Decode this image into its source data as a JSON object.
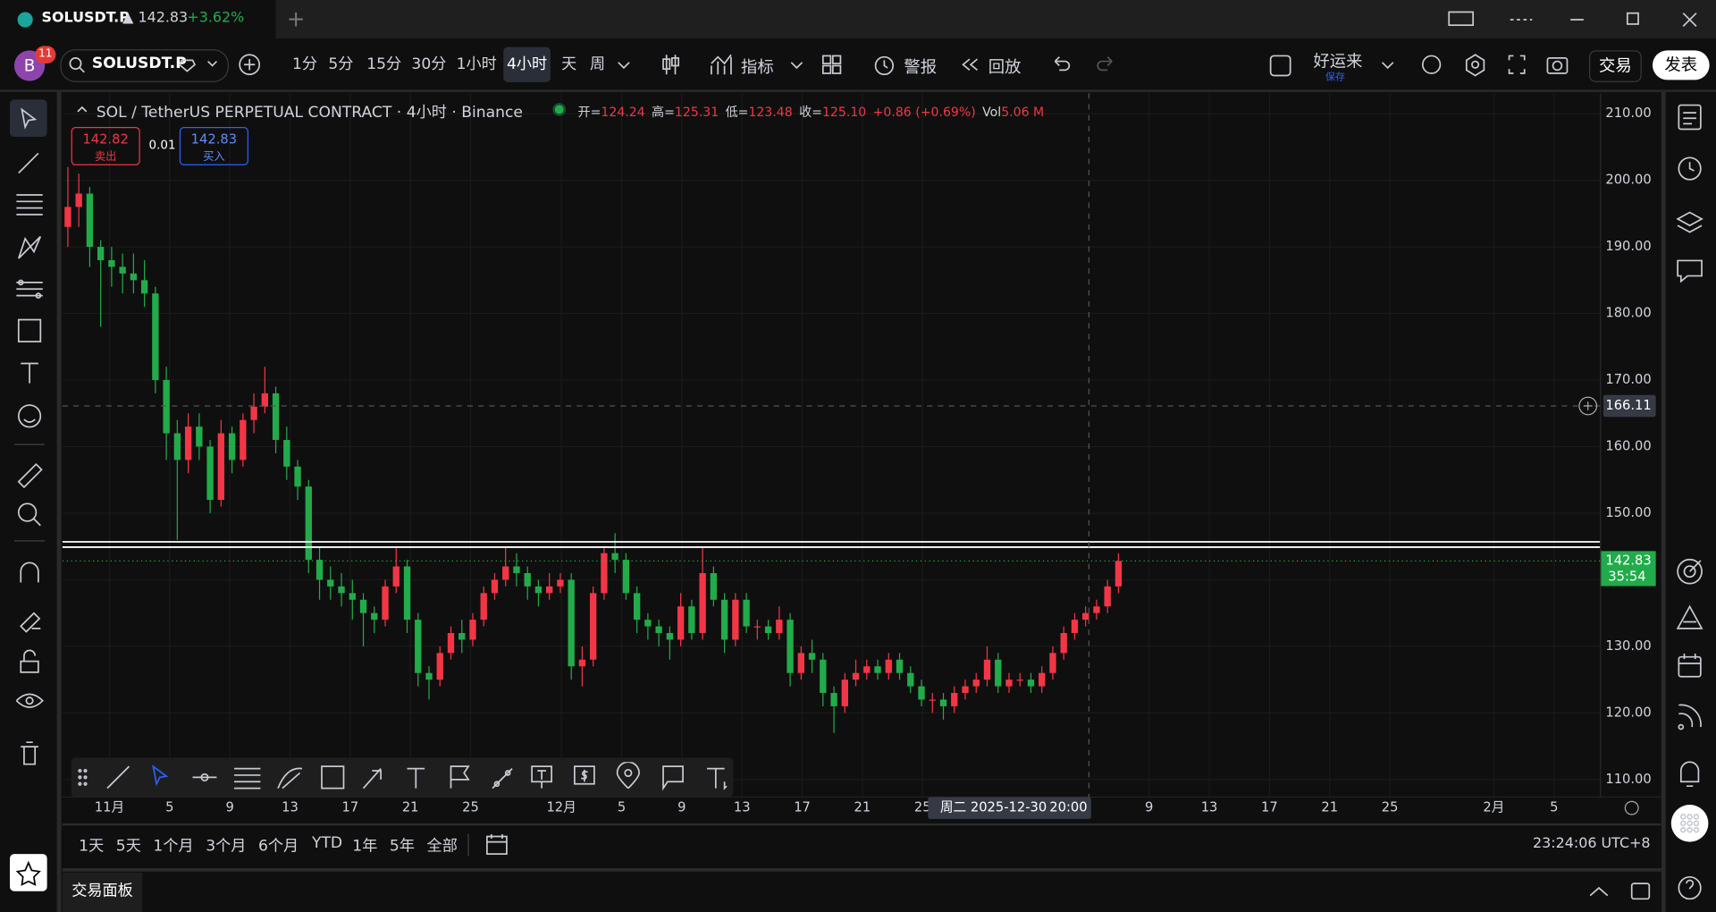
{
  "tab": {
    "symbol": "SOLUSDT.P",
    "price": "▲ 142.83",
    "change": "+3.62%"
  },
  "toolbar": {
    "avatar": "B",
    "badge": "11",
    "symbol": "SOLUSDT.P",
    "intervals": [
      "1分",
      "5分",
      "15分",
      "30分",
      "1小时",
      "4小时",
      "天",
      "周"
    ],
    "active_interval": 5,
    "indicators": "指标",
    "alert": "警报",
    "replay": "回放",
    "layout_name": "好运来",
    "layout_status": "保存",
    "trade": "交易",
    "publish": "发表"
  },
  "legend": {
    "title": "SOL / TetherUS PERPETUAL CONTRACT · 4小时 · Binance",
    "ohlc": [
      {
        "label": "开=",
        "value": "124.24"
      },
      {
        "label": "高=",
        "value": "125.31"
      },
      {
        "label": "低=",
        "value": "123.48"
      },
      {
        "label": "收=",
        "value": "125.10"
      }
    ],
    "change": "+0.86 (+0.69%)",
    "vol_label": "Vol",
    "vol": "5.06 M"
  },
  "order": {
    "sell_price": "142.82",
    "sell": "卖出",
    "spread": "0.01",
    "buy_price": "142.83",
    "buy": "买入"
  },
  "chart_data": {
    "type": "candlestick",
    "up_color": "#f23645",
    "down_color": "#22ab4a",
    "candles": [
      [
        193,
        202,
        190,
        196
      ],
      [
        196,
        201,
        193,
        198
      ],
      [
        198,
        199,
        187,
        190
      ],
      [
        190,
        191,
        178,
        188
      ],
      [
        188,
        190,
        184,
        187
      ],
      [
        187,
        189,
        183,
        186
      ],
      [
        186,
        189,
        183,
        185
      ],
      [
        185,
        188,
        181,
        183
      ],
      [
        183,
        184,
        168,
        170
      ],
      [
        170,
        172,
        158,
        162
      ],
      [
        162,
        164,
        146,
        158
      ],
      [
        158,
        165,
        156,
        163
      ],
      [
        163,
        165,
        158,
        160
      ],
      [
        160,
        161,
        150,
        152
      ],
      [
        152,
        164,
        151,
        162
      ],
      [
        162,
        163,
        156,
        158
      ],
      [
        158,
        165,
        157,
        164
      ],
      [
        164,
        168,
        162,
        166
      ],
      [
        166,
        172,
        165,
        168
      ],
      [
        168,
        169,
        159,
        161
      ],
      [
        161,
        163,
        155,
        157
      ],
      [
        157,
        158,
        152,
        154
      ],
      [
        154,
        155,
        141,
        143
      ],
      [
        143,
        145,
        137,
        140
      ],
      [
        140,
        142,
        137,
        139
      ],
      [
        139,
        141,
        136,
        138
      ],
      [
        138,
        140,
        134,
        137
      ],
      [
        137,
        138,
        130,
        135
      ],
      [
        135,
        136,
        132,
        134
      ],
      [
        134,
        140,
        133,
        139
      ],
      [
        139,
        145,
        138,
        142
      ],
      [
        142,
        143,
        132,
        134
      ],
      [
        134,
        135,
        124,
        126
      ],
      [
        126,
        127,
        122,
        125
      ],
      [
        125,
        130,
        124,
        129
      ],
      [
        129,
        133,
        128,
        132
      ],
      [
        132,
        134,
        129,
        131
      ],
      [
        131,
        135,
        130,
        134
      ],
      [
        134,
        139,
        133,
        138
      ],
      [
        138,
        141,
        137,
        140
      ],
      [
        140,
        145,
        139,
        142
      ],
      [
        142,
        144,
        139,
        141
      ],
      [
        141,
        142,
        137,
        139
      ],
      [
        139,
        140,
        136,
        138
      ],
      [
        138,
        141,
        137,
        139
      ],
      [
        139,
        141,
        138,
        140
      ],
      [
        140,
        141,
        125,
        127
      ],
      [
        127,
        130,
        124,
        128
      ],
      [
        128,
        139,
        127,
        138
      ],
      [
        138,
        145,
        137,
        144
      ],
      [
        144,
        147,
        141,
        143
      ],
      [
        143,
        144,
        137,
        138
      ],
      [
        138,
        139,
        132,
        134
      ],
      [
        134,
        135,
        131,
        133
      ],
      [
        133,
        134,
        130,
        132
      ],
      [
        132,
        133,
        128,
        131
      ],
      [
        131,
        138,
        130,
        136
      ],
      [
        136,
        137,
        131,
        132
      ],
      [
        132,
        145,
        131,
        141
      ],
      [
        141,
        142,
        136,
        137
      ],
      [
        137,
        138,
        129,
        131
      ],
      [
        131,
        138,
        130,
        137
      ],
      [
        137,
        138,
        132,
        133
      ],
      [
        133,
        134,
        131,
        133
      ],
      [
        133,
        134,
        131,
        132
      ],
      [
        132,
        136,
        131,
        134
      ],
      [
        134,
        135,
        124,
        126
      ],
      [
        126,
        130,
        125,
        129
      ],
      [
        129,
        131,
        126,
        128
      ],
      [
        128,
        129,
        121,
        123
      ],
      [
        123,
        124,
        117,
        121
      ],
      [
        121,
        126,
        120,
        125
      ],
      [
        125,
        128,
        124,
        126
      ],
      [
        126,
        128,
        125,
        127
      ],
      [
        127,
        128,
        125,
        126
      ],
      [
        126,
        129,
        125,
        128
      ],
      [
        128,
        129,
        125,
        126
      ],
      [
        126,
        127,
        123,
        124
      ],
      [
        124,
        125,
        121,
        122
      ],
      [
        122,
        123,
        120,
        122
      ],
      [
        122,
        123,
        119,
        121
      ],
      [
        121,
        124,
        120,
        123
      ],
      [
        123,
        125,
        122,
        124
      ],
      [
        124,
        126,
        123,
        125
      ],
      [
        125,
        130,
        124,
        128
      ],
      [
        128,
        129,
        123,
        124
      ],
      [
        124,
        126,
        123,
        125
      ],
      [
        125,
        126,
        124,
        125
      ],
      [
        125,
        126,
        123,
        124
      ],
      [
        124,
        127,
        123,
        126
      ],
      [
        126,
        130,
        125,
        129
      ],
      [
        129,
        133,
        128,
        132
      ],
      [
        132,
        135,
        131,
        134
      ],
      [
        134,
        136,
        133,
        135
      ],
      [
        135,
        137,
        134,
        136
      ],
      [
        136,
        140,
        135,
        139
      ],
      [
        139,
        144,
        138,
        142.83
      ]
    ],
    "ylim": [
      103.75,
      213.1
    ],
    "yticks": [
      {
        "value": 110,
        "label": "110.00"
      },
      {
        "value": 120,
        "label": "120.00"
      },
      {
        "value": 130,
        "label": "130.00"
      },
      {
        "value": 140,
        "label": "140.00"
      },
      {
        "value": 150,
        "label": "150.00"
      },
      {
        "value": 160,
        "label": "160.00"
      },
      {
        "value": 170,
        "label": "170.00"
      },
      {
        "value": 180,
        "label": "180.00"
      },
      {
        "value": 190,
        "label": "190.00"
      },
      {
        "value": 200,
        "label": "200.00"
      },
      {
        "value": 210,
        "label": "210.00"
      }
    ],
    "xlabels": [
      "11月",
      "5",
      "9",
      "13",
      "17",
      "21",
      "25",
      "12月",
      "5",
      "9",
      "13",
      "17",
      "21",
      "25",
      "9",
      "13",
      "17",
      "21",
      "25",
      "2月",
      "5"
    ],
    "hlines": [
      145.7,
      144.9
    ],
    "last_price": {
      "value": 142.83,
      "countdown": "35:54"
    },
    "crosshair": {
      "price": 166.11,
      "time_day": "周二 2025-12-30",
      "time_hour": "20:00"
    }
  },
  "range_bar": {
    "ranges": [
      "1天",
      "5天",
      "1个月",
      "3个月",
      "6个月",
      "YTD",
      "1年",
      "5年",
      "全部"
    ],
    "clock": "23:24:06 UTC+8"
  },
  "panel": {
    "title": "交易面板"
  }
}
